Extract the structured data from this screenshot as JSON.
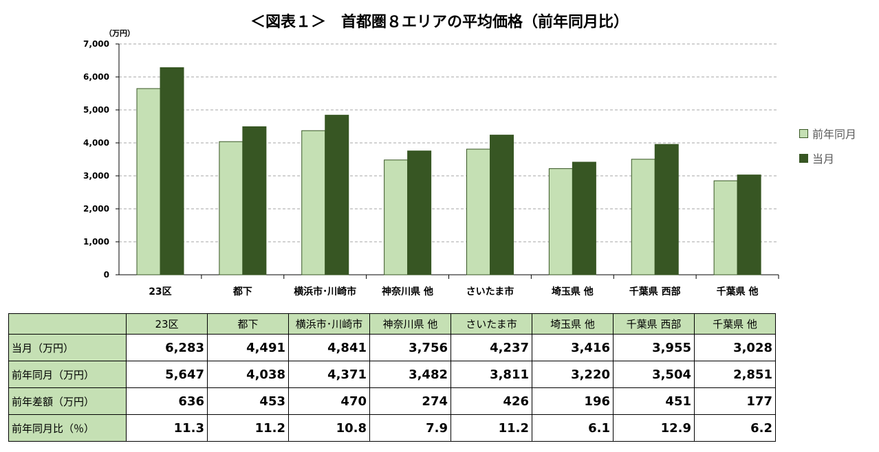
{
  "chart_data": {
    "type": "bar",
    "title": "＜図表１＞　首都圏８エリアの平均価格（前年同月比）",
    "ylabel": "（万円）",
    "ylim": [
      0,
      7000
    ],
    "yticks": [
      "0",
      "1,000",
      "2,000",
      "3,000",
      "4,000",
      "5,000",
      "6,000",
      "7,000"
    ],
    "grid": true,
    "legend_position": "right",
    "categories": [
      "23区",
      "都下",
      "横浜市･川崎市",
      "神奈川県 他",
      "さいたま市",
      "埼玉県 他",
      "千葉県 西部",
      "千葉県 他"
    ],
    "series": [
      {
        "name": "前年同月",
        "color": "#c5e0b4",
        "values": [
          5647,
          4038,
          4371,
          3482,
          3811,
          3220,
          3504,
          2851
        ]
      },
      {
        "name": "当月",
        "color": "#375623",
        "values": [
          6283,
          4491,
          4841,
          3756,
          4237,
          3416,
          3955,
          3028
        ]
      }
    ]
  },
  "table": {
    "headers": [
      "23区",
      "都下",
      "横浜市･川崎市",
      "神奈川県 他",
      "さいたま市",
      "埼玉県 他",
      "千葉県 西部",
      "千葉県 他"
    ],
    "rows": [
      {
        "label": "当月（万円）",
        "values": [
          "6,283",
          "4,491",
          "4,841",
          "3,756",
          "4,237",
          "3,416",
          "3,955",
          "3,028"
        ]
      },
      {
        "label": "前年同月（万円）",
        "values": [
          "5,647",
          "4,038",
          "4,371",
          "3,482",
          "3,811",
          "3,220",
          "3,504",
          "2,851"
        ]
      },
      {
        "label": "前年差額（万円）",
        "values": [
          "636",
          "453",
          "470",
          "274",
          "426",
          "196",
          "451",
          "177"
        ]
      },
      {
        "label": "前年同月比（％）",
        "values": [
          "11.3",
          "11.2",
          "10.8",
          "7.9",
          "11.2",
          "6.1",
          "12.9",
          "6.2"
        ]
      }
    ]
  }
}
